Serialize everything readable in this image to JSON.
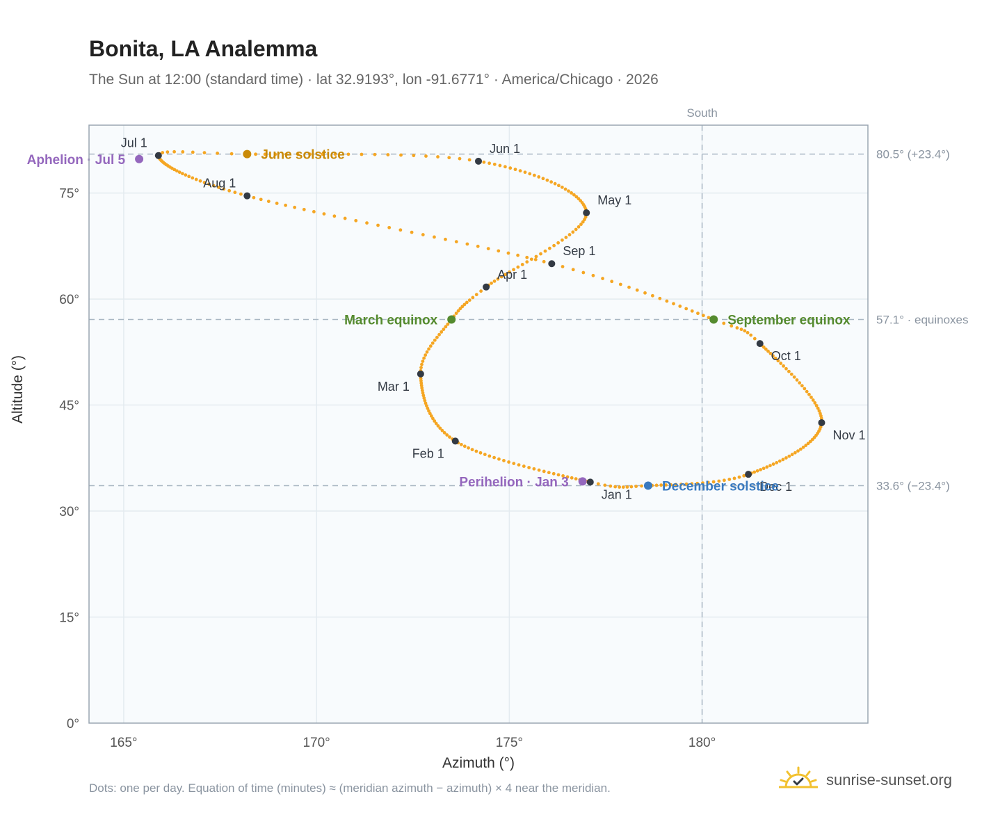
{
  "title": "Bonita, LA Analemma",
  "subtitle": "The Sun at 12:00 (standard time) · lat 32.9193°, lon -91.6771° · America/Chicago · 2026",
  "footnote": "Dots: one per day. Equation of time (minutes) ≈ (meridian azimuth − azimuth) × 4 near the meridian.",
  "brand": {
    "name": "sunrise-sunset.org",
    "icon": "sun-logo-icon"
  },
  "colors": {
    "path": "#f5a623",
    "month_marker": "#333a44",
    "equinox": "#558b2f",
    "june_solstice": "#c98a08",
    "december_solstice": "#3a7abf",
    "apsis": "#9467bd",
    "reference_line": "#a9b7c3",
    "plot_background": "#f8fbfd",
    "grid": "#e4ebf0",
    "frame": "#9aa6b2"
  },
  "chart_data": {
    "type": "scatter",
    "xlabel": "Azimuth (°)",
    "ylabel": "Altitude (°)",
    "xlim": [
      164.1,
      184.3
    ],
    "ylim": [
      0,
      84.6
    ],
    "x_ticks": [
      {
        "value": 165,
        "label": "165°"
      },
      {
        "value": 170,
        "label": "170°"
      },
      {
        "value": 175,
        "label": "175°"
      },
      {
        "value": 180,
        "label": "180°"
      }
    ],
    "y_ticks": [
      {
        "value": 0,
        "label": "0°"
      },
      {
        "value": 15,
        "label": "15°"
      },
      {
        "value": 30,
        "label": "30°"
      },
      {
        "value": 45,
        "label": "45°"
      },
      {
        "value": 60,
        "label": "60°"
      },
      {
        "value": 75,
        "label": "75°"
      }
    ],
    "grid": true,
    "reference_vertical": {
      "x": 180,
      "label": "South"
    },
    "reference_horizontal": [
      {
        "y": 80.5,
        "label": "80.5° (+23.4°)"
      },
      {
        "y": 57.1,
        "label": "57.1° · equinoxes"
      },
      {
        "y": 33.6,
        "label": "33.6° (−23.4°)"
      }
    ],
    "daily_path": {
      "points_per_day": 1,
      "control_points": [
        {
          "date": "Jan 1",
          "azimuth": 177.1,
          "altitude": 34.1
        },
        {
          "date": "Feb 1",
          "azimuth": 173.6,
          "altitude": 39.9
        },
        {
          "date": "Mar 1",
          "azimuth": 172.7,
          "altitude": 49.4
        },
        {
          "date": "Mar 20",
          "azimuth": 173.5,
          "altitude": 57.1
        },
        {
          "date": "Apr 1",
          "azimuth": 174.4,
          "altitude": 61.7
        },
        {
          "date": "May 1",
          "azimuth": 177.0,
          "altitude": 72.2
        },
        {
          "date": "Jun 1",
          "azimuth": 174.2,
          "altitude": 79.5
        },
        {
          "date": "Jun 21",
          "azimuth": 168.2,
          "altitude": 80.5
        },
        {
          "date": "Jul 1",
          "azimuth": 165.9,
          "altitude": 80.3
        },
        {
          "date": "Aug 1",
          "azimuth": 168.2,
          "altitude": 74.6
        },
        {
          "date": "Sep 1",
          "azimuth": 176.1,
          "altitude": 65.0
        },
        {
          "date": "Sep 22",
          "azimuth": 180.3,
          "altitude": 57.1
        },
        {
          "date": "Oct 1",
          "azimuth": 181.5,
          "altitude": 53.7
        },
        {
          "date": "Nov 1",
          "azimuth": 183.1,
          "altitude": 42.5
        },
        {
          "date": "Dec 1",
          "azimuth": 181.2,
          "altitude": 35.2
        },
        {
          "date": "Dec 21",
          "azimuth": 178.6,
          "altitude": 33.6
        }
      ]
    },
    "month_markers": [
      {
        "label": "Jan 1",
        "azimuth": 177.1,
        "altitude": 34.1,
        "anchor": "below-right"
      },
      {
        "label": "Feb 1",
        "azimuth": 173.6,
        "altitude": 39.9,
        "anchor": "below-left"
      },
      {
        "label": "Mar 1",
        "azimuth": 172.7,
        "altitude": 49.4,
        "anchor": "below-left"
      },
      {
        "label": "Apr 1",
        "azimuth": 174.4,
        "altitude": 61.7,
        "anchor": "above-right"
      },
      {
        "label": "May 1",
        "azimuth": 177.0,
        "altitude": 72.2,
        "anchor": "above-right"
      },
      {
        "label": "Jun 1",
        "azimuth": 174.2,
        "altitude": 79.5,
        "anchor": "above-right"
      },
      {
        "label": "Jul 1",
        "azimuth": 165.9,
        "altitude": 80.3,
        "anchor": "above-left"
      },
      {
        "label": "Aug 1",
        "azimuth": 168.2,
        "altitude": 74.6,
        "anchor": "above-left"
      },
      {
        "label": "Sep 1",
        "azimuth": 176.1,
        "altitude": 65.0,
        "anchor": "above-right"
      },
      {
        "label": "Oct 1",
        "azimuth": 181.5,
        "altitude": 53.7,
        "anchor": "below-right"
      },
      {
        "label": "Nov 1",
        "azimuth": 183.1,
        "altitude": 42.5,
        "anchor": "below-right"
      },
      {
        "label": "Dec 1",
        "azimuth": 181.2,
        "altitude": 35.2,
        "anchor": "below-right"
      }
    ],
    "events": [
      {
        "label": "March equinox",
        "azimuth": 173.5,
        "altitude": 57.1,
        "color_key": "equinox",
        "anchor": "left"
      },
      {
        "label": "June solstice",
        "azimuth": 168.2,
        "altitude": 80.5,
        "color_key": "june_solstice",
        "anchor": "right"
      },
      {
        "label": "September equinox",
        "azimuth": 180.3,
        "altitude": 57.1,
        "color_key": "equinox",
        "anchor": "right"
      },
      {
        "label": "December solstice",
        "azimuth": 178.6,
        "altitude": 33.6,
        "color_key": "december_solstice",
        "anchor": "right"
      },
      {
        "label": "Aphelion · Jul 5",
        "azimuth": 165.4,
        "altitude": 79.8,
        "color_key": "apsis",
        "anchor": "left"
      },
      {
        "label": "Perihelion · Jan 3",
        "azimuth": 176.9,
        "altitude": 34.2,
        "color_key": "apsis",
        "anchor": "left"
      }
    ]
  }
}
